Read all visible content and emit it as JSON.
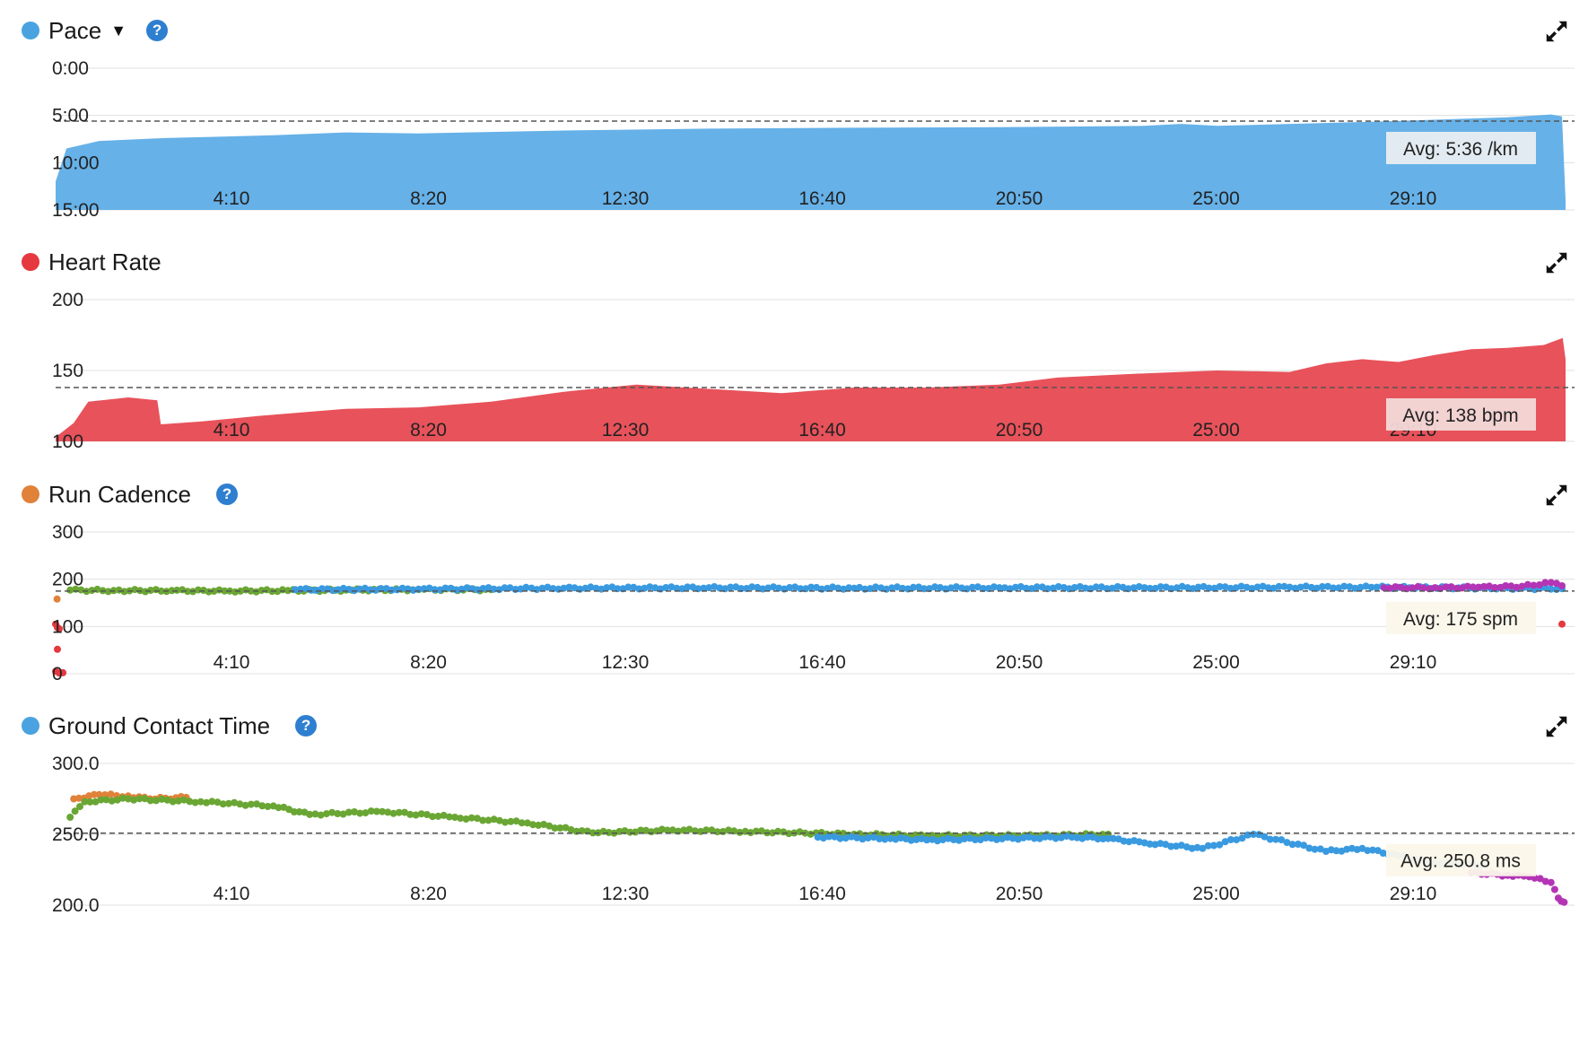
{
  "x_ticks": [
    "4:10",
    "8:20",
    "12:30",
    "16:40",
    "20:50",
    "25:00",
    "29:10"
  ],
  "icons": {
    "help": "help-icon",
    "expand": "expand-icon",
    "dropdown": "caret-down-icon"
  },
  "panels": [
    {
      "key": "pace",
      "title": "Pace",
      "dot_color": "#4aa3e0",
      "has_dropdown": true,
      "has_help": true,
      "avg_label": "Avg: 5:36 /km",
      "chart_data": {
        "type": "area",
        "title": "Pace",
        "ylabel": "",
        "y_ticks": [
          "0:00",
          "5:00",
          "10:00",
          "15:00"
        ],
        "ylim": [
          0,
          15
        ],
        "y_reversed": true,
        "avg": 5.6,
        "x_ticks": [
          "4:10",
          "8:20",
          "12:30",
          "16:40",
          "20:50",
          "25:00",
          "29:10"
        ],
        "xlim_seconds": [
          0,
          2080
        ],
        "series": [
          {
            "color": "#66b1e8",
            "points": [
              [
                0,
                12
              ],
              [
                15,
                8.5
              ],
              [
                60,
                7.7
              ],
              [
                150,
                7.4
              ],
              [
                300,
                7.1
              ],
              [
                400,
                6.8
              ],
              [
                500,
                6.9
              ],
              [
                700,
                6.6
              ],
              [
                900,
                6.4
              ],
              [
                1100,
                6.3
              ],
              [
                1300,
                6.25
              ],
              [
                1500,
                6.1
              ],
              [
                1550,
                5.9
              ],
              [
                1600,
                6.1
              ],
              [
                1800,
                5.7
              ],
              [
                2000,
                5.2
              ],
              [
                2060,
                4.9
              ],
              [
                2075,
                5.1
              ],
              [
                2080,
                14
              ]
            ]
          }
        ]
      }
    },
    {
      "key": "heart-rate",
      "title": "Heart Rate",
      "dot_color": "#e5383f",
      "has_dropdown": false,
      "has_help": false,
      "avg_label": "Avg: 138 bpm",
      "chart_data": {
        "type": "area",
        "title": "Heart Rate",
        "ylabel": "",
        "y_ticks": [
          "200",
          "150",
          "100"
        ],
        "ylim": [
          100,
          200
        ],
        "y_reversed": false,
        "avg": 138,
        "x_ticks": [
          "4:10",
          "8:20",
          "12:30",
          "16:40",
          "20:50",
          "25:00",
          "29:10"
        ],
        "xlim_seconds": [
          0,
          2080
        ],
        "series": [
          {
            "color": "#e8525a",
            "points": [
              [
                0,
                103
              ],
              [
                25,
                113
              ],
              [
                45,
                128
              ],
              [
                100,
                131
              ],
              [
                140,
                129
              ],
              [
                145,
                112
              ],
              [
                200,
                114
              ],
              [
                280,
                118
              ],
              [
                400,
                123
              ],
              [
                500,
                124
              ],
              [
                600,
                128
              ],
              [
                700,
                135
              ],
              [
                800,
                140
              ],
              [
                900,
                137
              ],
              [
                1000,
                134
              ],
              [
                1100,
                138
              ],
              [
                1200,
                138
              ],
              [
                1300,
                140
              ],
              [
                1380,
                145
              ],
              [
                1500,
                148
              ],
              [
                1600,
                150
              ],
              [
                1700,
                149
              ],
              [
                1750,
                155
              ],
              [
                1800,
                158
              ],
              [
                1850,
                156
              ],
              [
                1900,
                161
              ],
              [
                1950,
                165
              ],
              [
                2000,
                166
              ],
              [
                2050,
                168
              ],
              [
                2076,
                173
              ],
              [
                2080,
                158
              ]
            ]
          }
        ]
      }
    },
    {
      "key": "run-cadence",
      "title": "Run Cadence",
      "dot_color": "#e0823a",
      "has_dropdown": false,
      "has_help": true,
      "avg_label": "Avg: 175 spm",
      "chart_data": {
        "type": "scatter",
        "title": "Run Cadence",
        "ylabel": "",
        "y_ticks": [
          "300",
          "200",
          "100",
          "0"
        ],
        "ylim": [
          0,
          300
        ],
        "y_reversed": false,
        "avg": 175,
        "x_ticks": [
          "4:10",
          "8:20",
          "12:30",
          "16:40",
          "20:50",
          "25:00",
          "29:10"
        ],
        "xlim_seconds": [
          0,
          2080
        ],
        "series": [
          {
            "color": "#6aa634",
            "points": [
              [
                20,
                177
              ],
              [
                80,
                176
              ],
              [
                160,
                176
              ],
              [
                240,
                175
              ],
              [
                320,
                176
              ],
              [
                400,
                177
              ],
              [
                500,
                178
              ],
              [
                600,
                178
              ]
            ]
          },
          {
            "color": "#3a9ae0",
            "points": [
              [
                330,
                178
              ],
              [
                500,
                179
              ],
              [
                700,
                181
              ],
              [
                900,
                182
              ],
              [
                1100,
                181
              ],
              [
                1300,
                182
              ],
              [
                1500,
                182
              ],
              [
                1700,
                183
              ],
              [
                1820,
                183
              ],
              [
                2075,
                180
              ]
            ]
          },
          {
            "color": "#b335b5",
            "points": [
              [
                1830,
                182
              ],
              [
                1900,
                182
              ],
              [
                1960,
                183
              ],
              [
                2020,
                185
              ],
              [
                2060,
                193
              ],
              [
                2075,
                186
              ]
            ]
          },
          {
            "color": "#e5383f",
            "points": [
              [
                0,
                105
              ],
              [
                5,
                95
              ],
              [
                0,
                5
              ],
              [
                10,
                2
              ],
              [
                2075,
                105
              ]
            ]
          },
          {
            "color": "#e0823a",
            "points": [
              [
                2,
                158
              ]
            ]
          }
        ]
      }
    },
    {
      "key": "ground-contact-time",
      "title": "Ground Contact Time",
      "dot_color": "#4aa3e0",
      "has_dropdown": false,
      "has_help": true,
      "avg_label": "Avg: 250.8 ms",
      "chart_data": {
        "type": "scatter",
        "title": "Ground Contact Time",
        "ylabel": "",
        "y_ticks": [
          "300.0",
          "250.0",
          "200.0"
        ],
        "ylim": [
          200,
          300
        ],
        "y_reversed": false,
        "avg": 250.8,
        "x_ticks": [
          "4:10",
          "8:20",
          "12:30",
          "16:40",
          "20:50",
          "25:00",
          "29:10"
        ],
        "xlim_seconds": [
          0,
          2080
        ],
        "series": [
          {
            "color": "#e0823a",
            "points": [
              [
                25,
                275
              ],
              [
                60,
                278
              ],
              [
                100,
                277
              ],
              [
                130,
                275
              ],
              [
                180,
                276
              ]
            ]
          },
          {
            "color": "#6aa634",
            "points": [
              [
                20,
                262
              ],
              [
                40,
                273
              ],
              [
                100,
                275
              ],
              [
                200,
                273
              ],
              [
                300,
                270
              ],
              [
                350,
                264
              ],
              [
                450,
                266
              ],
              [
                550,
                262
              ],
              [
                650,
                258
              ],
              [
                740,
                251
              ],
              [
                850,
                253
              ],
              [
                950,
                252
              ],
              [
                1100,
                250
              ],
              [
                1200,
                249
              ],
              [
                1350,
                249
              ],
              [
                1450,
                250
              ]
            ]
          },
          {
            "color": "#3a9ae0",
            "points": [
              [
                1050,
                248
              ],
              [
                1150,
                247
              ],
              [
                1200,
                246
              ],
              [
                1400,
                248
              ],
              [
                1450,
                247
              ],
              [
                1500,
                244
              ],
              [
                1580,
                240
              ],
              [
                1650,
                250
              ],
              [
                1750,
                238
              ],
              [
                1800,
                240
              ],
              [
                1850,
                235
              ],
              [
                1900,
                230
              ],
              [
                1970,
                228
              ]
            ]
          },
          {
            "color": "#b335b5",
            "points": [
              [
                1950,
                223
              ],
              [
                2000,
                221
              ],
              [
                2030,
                220
              ],
              [
                2060,
                216
              ],
              [
                2070,
                205
              ],
              [
                2078,
                202
              ]
            ]
          }
        ]
      }
    }
  ]
}
